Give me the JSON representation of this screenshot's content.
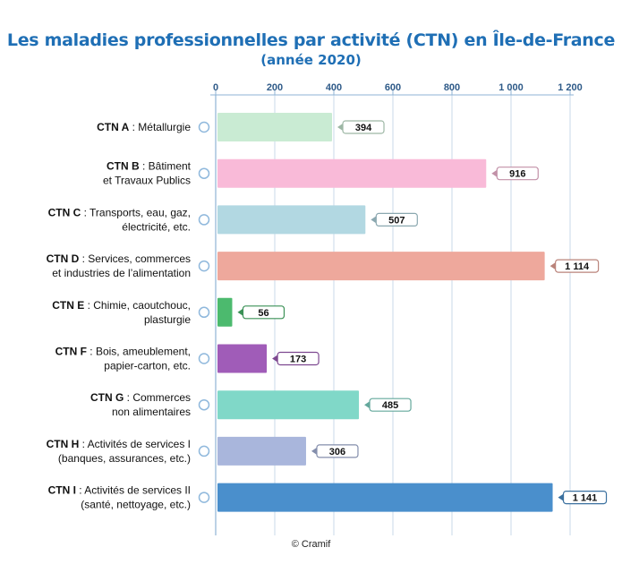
{
  "chart_data": {
    "type": "bar",
    "orientation": "horizontal",
    "title": "Les maladies professionnelles par activité (CTN) en Île-de-France",
    "subtitle": "(année 2020)",
    "xlim": [
      0,
      1200
    ],
    "xticks": [
      {
        "value": 0,
        "label": "0"
      },
      {
        "value": 200,
        "label": "200"
      },
      {
        "value": 400,
        "label": "400"
      },
      {
        "value": 600,
        "label": "600"
      },
      {
        "value": 800,
        "label": "800"
      },
      {
        "value": 1000,
        "label": "1 000"
      },
      {
        "value": 1200,
        "label": "1 200"
      }
    ],
    "grid": true,
    "categories": [
      {
        "code": "CTN A",
        "lines": [
          "Métallurgie"
        ],
        "value": 394,
        "value_label": "394",
        "color": "#c9ebd3"
      },
      {
        "code": "CTN B",
        "lines": [
          "Bâtiment",
          "et Travaux Publics"
        ],
        "value": 916,
        "value_label": "916",
        "color": "#f9bad8"
      },
      {
        "code": "CTN C",
        "lines": [
          "Transports, eau, gaz,",
          "électricité, etc."
        ],
        "value": 507,
        "value_label": "507",
        "color": "#b2d8e2"
      },
      {
        "code": "CTN D",
        "lines": [
          "Services, commerces",
          "et industries de l’alimentation"
        ],
        "value": 1114,
        "value_label": "1 114",
        "color": "#eea89c"
      },
      {
        "code": "CTN E",
        "lines": [
          "Chimie, caoutchouc,",
          "plasturgie"
        ],
        "value": 56,
        "value_label": "56",
        "color": "#4cba6e"
      },
      {
        "code": "CTN F",
        "lines": [
          "Bois, ameublement,",
          "papier-carton, etc."
        ],
        "value": 173,
        "value_label": "173",
        "color": "#a05cb8"
      },
      {
        "code": "CTN G",
        "lines": [
          "Commerces",
          "non alimentaires"
        ],
        "value": 485,
        "value_label": "485",
        "color": "#80d8c8"
      },
      {
        "code": "CTN H",
        "lines": [
          "Activités de services I",
          "(banques, assurances, etc.)"
        ],
        "value": 306,
        "value_label": "306",
        "color": "#a9b6dc"
      },
      {
        "code": "CTN I",
        "lines": [
          "Activités de services II",
          "(santé, nettoyage, etc.)"
        ],
        "value": 1141,
        "value_label": "1 141",
        "color": "#4a8fcc"
      }
    ]
  },
  "source": "© Cramif"
}
